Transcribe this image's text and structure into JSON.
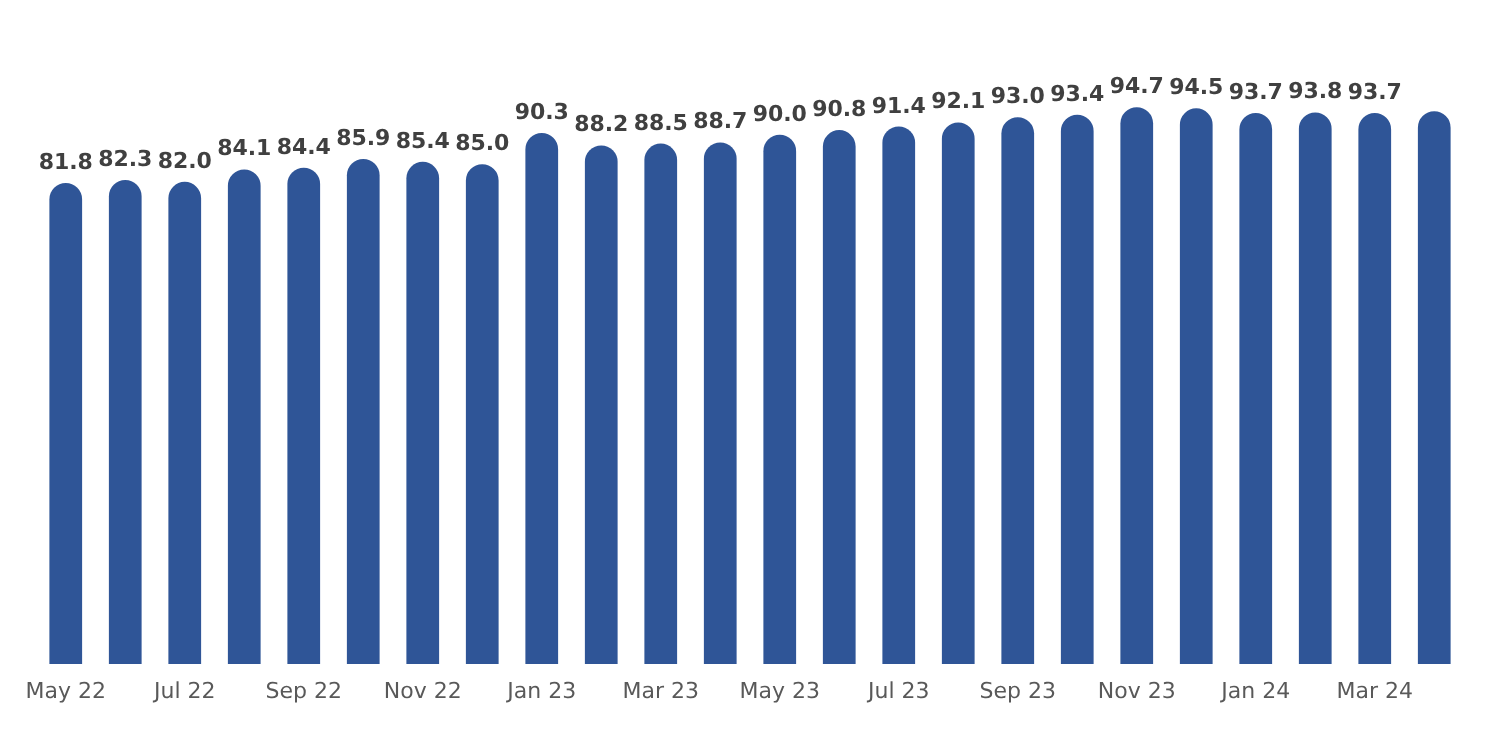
{
  "chart_data": {
    "type": "bar",
    "categories": [
      "May 22",
      null,
      "Jul 22",
      null,
      "Sep 22",
      null,
      "Nov 22",
      null,
      "Jan 23",
      null,
      "Mar 23",
      null,
      "May 23",
      null,
      "Jul 23",
      null,
      "Sep 23",
      null,
      "Nov 23",
      null,
      "Jan 24",
      null,
      "Mar 24",
      null
    ],
    "values": [
      81.8,
      82.3,
      82.0,
      84.1,
      84.4,
      85.9,
      85.4,
      85.0,
      90.3,
      88.2,
      88.5,
      88.7,
      90.0,
      90.8,
      91.4,
      92.1,
      93.0,
      93.4,
      94.7,
      94.5,
      93.7,
      93.8,
      93.7,
      94.0
    ],
    "value_labels": [
      "81.8",
      "82.3",
      "82.0",
      "84.1",
      "84.4",
      "85.9",
      "85.4",
      "85.0",
      "90.3",
      "88.2",
      "88.5",
      "88.7",
      "90.0",
      "90.8",
      "91.4",
      "92.1",
      "93.0",
      "93.4",
      "94.7",
      "94.5",
      "93.7",
      "93.8",
      "93.7",
      null
    ],
    "color": "#2f5597"
  }
}
